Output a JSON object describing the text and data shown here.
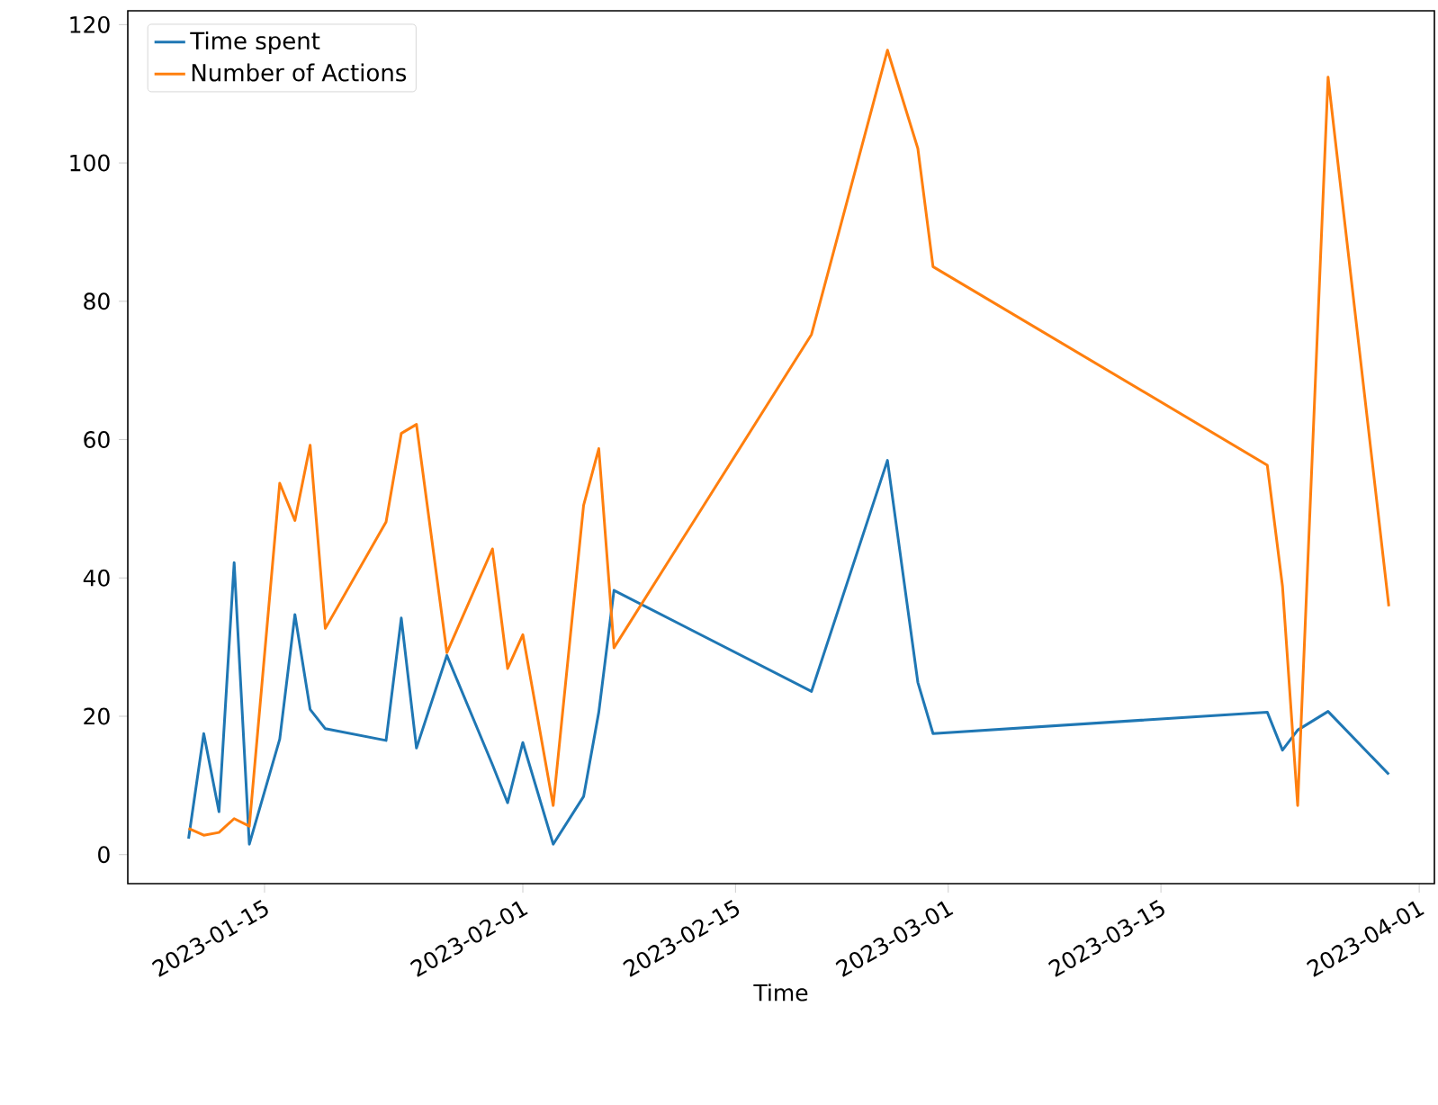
{
  "chart_data": {
    "type": "line",
    "xlabel": "Time",
    "x": [
      "2023-01-10",
      "2023-01-11",
      "2023-01-12",
      "2023-01-13",
      "2023-01-14",
      "2023-01-16",
      "2023-01-17",
      "2023-01-18",
      "2023-01-19",
      "2023-01-23",
      "2023-01-24",
      "2023-01-25",
      "2023-01-27",
      "2023-01-30",
      "2023-01-31",
      "2023-02-01",
      "2023-02-03",
      "2023-02-05",
      "2023-02-06",
      "2023-02-07",
      "2023-02-20",
      "2023-02-25",
      "2023-02-27",
      "2023-02-28",
      "2023-03-22",
      "2023-03-23",
      "2023-03-24",
      "2023-03-26",
      "2023-03-30"
    ],
    "series": [
      {
        "name": "Time spent",
        "color": "#1f77b4",
        "values": [
          2.3,
          17.5,
          6.2,
          42.2,
          1.5,
          16.7,
          34.7,
          21,
          18.2,
          16.5,
          34.2,
          15.4,
          28.8,
          13,
          7.5,
          16.2,
          1.5,
          8.4,
          20.6,
          38.2,
          23.6,
          57.0,
          24.9,
          17.5,
          20.6,
          15.1,
          18,
          20.7,
          11.6
        ]
      },
      {
        "name": "Number of Actions",
        "color": "#ff7f0e",
        "values": [
          3.8,
          2.8,
          3.2,
          5.2,
          4.1,
          53.7,
          48.3,
          59.2,
          32.7,
          48.1,
          60.9,
          62.2,
          29.2,
          44.2,
          26.9,
          31.8,
          7.1,
          50.5,
          58.7,
          29.9,
          75.2,
          116.3,
          102.1,
          85.0,
          56.3,
          38.8,
          7.1,
          112.4,
          35.9
        ]
      }
    ],
    "xlim": [
      "2023-01-06",
      "2023-04-02"
    ],
    "xticks": [
      "2023-01-15",
      "2023-02-01",
      "2023-02-15",
      "2023-03-01",
      "2023-03-15",
      "2023-04-01"
    ],
    "ylim": [
      -4.2,
      122
    ],
    "yticks": [
      0,
      20,
      40,
      60,
      80,
      100,
      120
    ],
    "legend": "top left",
    "grid": false,
    "marker": "none",
    "line_style": "solid"
  }
}
